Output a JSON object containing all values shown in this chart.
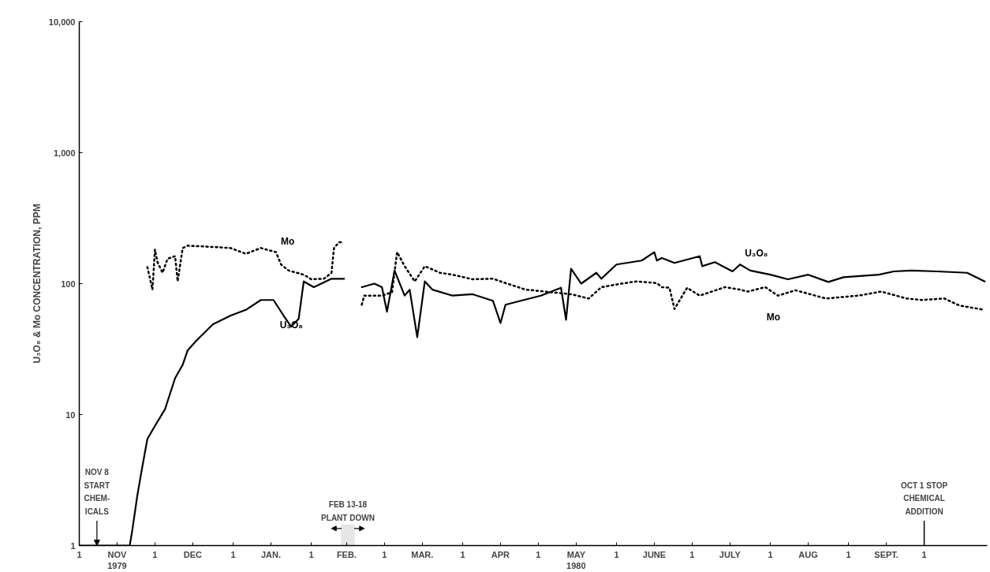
{
  "chart_data": {
    "type": "line",
    "ylabel": "U₃O₈ & Mo CONCENTRATION, PPM",
    "log": "y",
    "xlim": [
      "1979-11-01",
      "1980-10-26"
    ],
    "ylim": [
      1,
      10000
    ],
    "yticks": [
      1,
      10,
      100,
      {
        "value": 1000,
        "label": "1,000"
      },
      {
        "value": 10000,
        "label": "10,000"
      }
    ],
    "xticks": [
      {
        "value": "1979-11-01",
        "label": "1"
      },
      {
        "value": "1979-11-16",
        "label": "NOV\n1979"
      },
      {
        "value": "1979-12-01",
        "label": "1"
      },
      {
        "value": "1979-12-16",
        "label": "DEC"
      },
      {
        "value": "1980-01-01",
        "label": "1"
      },
      {
        "value": "1980-01-16",
        "label": "JAN."
      },
      {
        "value": "1980-02-01",
        "label": "1"
      },
      {
        "value": "1980-02-15",
        "label": "FEB."
      },
      {
        "value": "1980-03-01",
        "label": "1"
      },
      {
        "value": "1980-03-16",
        "label": "MAR."
      },
      {
        "value": "1980-04-01",
        "label": "1"
      },
      {
        "value": "1980-04-16",
        "label": "APR"
      },
      {
        "value": "1980-05-01",
        "label": "1"
      },
      {
        "value": "1980-05-16",
        "label": "MAY\n1980"
      },
      {
        "value": "1980-06-01",
        "label": "1"
      },
      {
        "value": "1980-06-16",
        "label": "JUNE"
      },
      {
        "value": "1980-07-01",
        "label": "1"
      },
      {
        "value": "1980-07-16",
        "label": "JULY"
      },
      {
        "value": "1980-08-01",
        "label": "1"
      },
      {
        "value": "1980-08-16",
        "label": "AUG"
      },
      {
        "value": "1980-09-01",
        "label": "1"
      },
      {
        "value": "1980-09-16",
        "label": "SEPT."
      },
      {
        "value": "1980-10-01",
        "label": "1"
      }
    ],
    "grid": false,
    "series": [
      {
        "name": "U₃O₈",
        "color": "#000000",
        "line_style": "solid",
        "x": [
          "1979-11-01",
          "1979-11-21",
          "1979-11-22",
          "1979-11-24",
          "1979-11-26",
          "1979-11-28",
          "1979-12-01",
          "1979-12-05",
          "1979-12-09",
          "1979-12-12",
          "1979-12-14",
          "1979-12-17",
          "1979-12-24",
          "1979-12-31",
          "1980-01-06",
          "1980-01-12",
          "1980-01-17",
          "1980-01-21",
          "1980-01-24",
          "1980-01-27",
          "1980-01-29",
          "1980-02-02",
          "1980-02-09",
          "1980-02-14",
          "1980-02-17",
          "1980-02-21",
          "1980-02-26",
          "1980-02-29",
          "1980-03-02",
          "1980-03-05",
          "1980-03-09",
          "1980-03-11",
          "1980-03-14",
          "1980-03-17",
          "1980-03-20",
          "1980-03-28",
          "1980-04-05",
          "1980-04-13",
          "1980-04-16",
          "1980-04-18",
          "1980-04-24",
          "1980-05-02",
          "1980-05-10",
          "1980-05-12",
          "1980-05-14",
          "1980-05-18",
          "1980-05-24",
          "1980-05-26",
          "1980-06-01",
          "1980-06-11",
          "1980-06-16",
          "1980-06-17",
          "1980-06-19",
          "1980-06-24",
          "1980-07-04",
          "1980-07-05",
          "1980-07-10",
          "1980-07-17",
          "1980-07-20",
          "1980-07-24",
          "1980-08-01",
          "1980-08-08",
          "1980-08-16",
          "1980-08-24",
          "1980-08-30",
          "1980-09-13",
          "1980-09-19",
          "1980-09-26",
          "1980-10-06",
          "1980-10-18",
          "1980-10-25"
        ],
        "values": [
          1,
          1,
          1.3,
          2.4,
          4,
          6.5,
          8.2,
          11,
          19,
          24,
          31,
          36,
          49,
          57,
          63,
          75,
          75,
          57,
          47,
          54,
          104,
          94,
          109,
          109,
          null,
          94,
          100,
          94,
          61,
          126,
          81,
          90,
          39,
          104,
          90,
          81,
          83,
          74,
          50,
          69,
          74,
          81,
          93,
          53,
          130,
          100,
          121,
          109,
          140,
          150,
          174,
          150,
          157,
          144,
          162,
          136,
          146,
          124,
          140,
          126,
          117,
          108,
          117,
          103,
          112,
          117,
          124,
          126,
          124,
          121,
          104
        ]
      },
      {
        "name": "Mo",
        "color": "#000000",
        "line_style": "dotted",
        "x": [
          "1979-11-28",
          "1979-11-30",
          "1979-12-01",
          "1979-12-02",
          "1979-12-04",
          "1979-12-06",
          "1979-12-09",
          "1979-12-10",
          "1979-12-12",
          "1979-12-14",
          "1979-12-23",
          "1979-12-31",
          "1980-01-06",
          "1980-01-12",
          "1980-01-18",
          "1980-01-20",
          "1980-01-23",
          "1980-01-29",
          "1980-02-01",
          "1980-02-06",
          "1980-02-09",
          "1980-02-10",
          "1980-02-12",
          "1980-02-14",
          "1980-02-17",
          "1980-02-21",
          "1980-02-22",
          "1980-02-29",
          "1980-03-04",
          "1980-03-06",
          "1980-03-09",
          "1980-03-13",
          "1980-03-17",
          "1980-03-23",
          "1980-03-28",
          "1980-04-05",
          "1980-04-13",
          "1980-04-18",
          "1980-04-26",
          "1980-05-14",
          "1980-05-21",
          "1980-05-26",
          "1980-06-03",
          "1980-06-09",
          "1980-06-17",
          "1980-06-19",
          "1980-06-22",
          "1980-06-24",
          "1980-06-29",
          "1980-07-04",
          "1980-07-14",
          "1980-07-20",
          "1980-07-23",
          "1980-07-30",
          "1980-08-04",
          "1980-08-11",
          "1980-08-23",
          "1980-09-05",
          "1980-09-14",
          "1980-09-24",
          "1980-09-30",
          "1980-10-09",
          "1980-10-15",
          "1980-10-25"
        ],
        "values": [
          134,
          90,
          182,
          146,
          121,
          155,
          162,
          104,
          187,
          195,
          191,
          187,
          169,
          187,
          174,
          140,
          126,
          117,
          108,
          109,
          121,
          187,
          207,
          207,
          null,
          69,
          81,
          81,
          86,
          174,
          136,
          104,
          136,
          121,
          117,
          108,
          109,
          101,
          90,
          83,
          77,
          94,
          100,
          104,
          101,
          94,
          93,
          64,
          93,
          81,
          94,
          90,
          87,
          94,
          81,
          89,
          77,
          81,
          87,
          77,
          75,
          77,
          68,
          63
        ]
      }
    ],
    "annotations": [
      {
        "text": "NOV 8\nSTART\nCHEM-\nICALS",
        "x": "1979-11-08",
        "y": 1
      }
    ],
    "ref_lines": [
      {
        "axis": "x",
        "value": "1980-10-01",
        "label": "OCT 1 STOP\nCHEMICAL\nADDITION"
      }
    ],
    "bands": [
      {
        "axis": "x",
        "from": "1980-02-13",
        "to": "1980-02-18",
        "label": "FEB 13-18\nPLANT DOWN",
        "color": "#e6e6e6"
      }
    ]
  }
}
